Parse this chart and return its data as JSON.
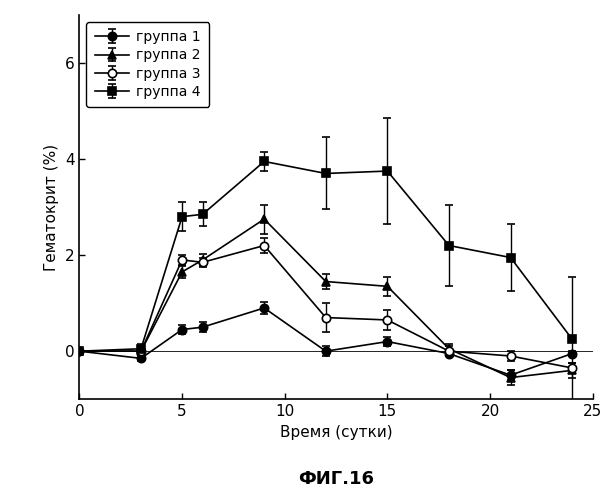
{
  "x": [
    0,
    3,
    5,
    6,
    9,
    12,
    15,
    18,
    21,
    24
  ],
  "group1": {
    "y": [
      0.0,
      -0.15,
      0.45,
      0.5,
      0.9,
      0.0,
      0.2,
      -0.05,
      -0.5,
      -0.05
    ],
    "yerr": [
      0.05,
      0.05,
      0.1,
      0.1,
      0.12,
      0.1,
      0.1,
      0.05,
      0.1,
      0.05
    ],
    "label": "группа 1",
    "marker": "o",
    "fillstyle": "full"
  },
  "group2": {
    "y": [
      0.0,
      0.0,
      1.65,
      1.9,
      2.75,
      1.45,
      1.35,
      0.05,
      -0.55,
      -0.4
    ],
    "yerr": [
      0.05,
      0.05,
      0.12,
      0.12,
      0.3,
      0.15,
      0.2,
      0.1,
      0.15,
      0.15
    ],
    "label": "группа 2",
    "marker": "^",
    "fillstyle": "full"
  },
  "group3": {
    "y": [
      0.0,
      0.0,
      1.9,
      1.85,
      2.2,
      0.7,
      0.65,
      0.0,
      -0.1,
      -0.35
    ],
    "yerr": [
      0.05,
      0.05,
      0.1,
      0.1,
      0.15,
      0.3,
      0.2,
      0.1,
      0.1,
      0.1
    ],
    "label": "группа 3",
    "marker": "o",
    "fillstyle": "none"
  },
  "group4": {
    "y": [
      0.0,
      0.05,
      2.8,
      2.85,
      3.95,
      3.7,
      3.75,
      2.2,
      1.95,
      0.25
    ],
    "yerr": [
      0.05,
      0.1,
      0.3,
      0.25,
      0.2,
      0.75,
      1.1,
      0.85,
      0.7,
      1.3
    ],
    "label": "группа 4",
    "marker": "s",
    "fillstyle": "full"
  },
  "xlabel": "Время (сутки)",
  "ylabel": "Гематокрит (%)",
  "title": "ФИГ.16",
  "xlim": [
    0,
    25
  ],
  "ylim": [
    -1.0,
    7.0
  ],
  "yticks": [
    0,
    2,
    4,
    6
  ],
  "xticks": [
    0,
    5,
    10,
    15,
    20,
    25
  ],
  "figsize": [
    6.11,
    4.99
  ],
  "dpi": 100
}
